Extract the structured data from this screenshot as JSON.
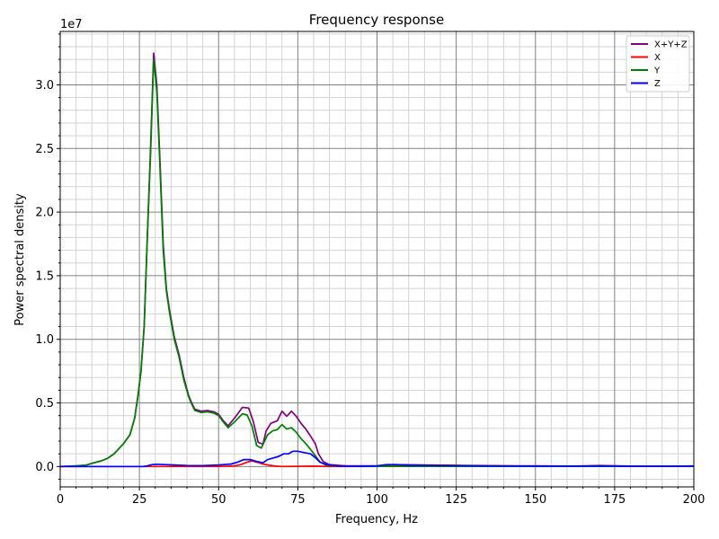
{
  "chart_data": {
    "type": "line",
    "title": "Frequency response",
    "xlabel": "Frequency, Hz",
    "ylabel": "Power spectral density",
    "y_scale_label": "1e7",
    "xlim": [
      0,
      200
    ],
    "ylim": [
      -1.6,
      34.2
    ],
    "x_ticks": [
      0,
      25,
      50,
      75,
      100,
      125,
      150,
      175,
      200
    ],
    "x_tick_labels": [
      "0",
      "25",
      "50",
      "75",
      "100",
      "125",
      "150",
      "175",
      "200"
    ],
    "y_ticks": [
      0,
      5,
      10,
      15,
      20,
      25,
      30
    ],
    "y_tick_labels": [
      "0.0",
      "0.5",
      "1.0",
      "1.5",
      "2.0",
      "2.5",
      "3.0"
    ],
    "grid": true,
    "legend_position": "top-right",
    "series": [
      {
        "name": "X+Y+Z",
        "color": "#800080",
        "points": [
          [
            0,
            0
          ],
          [
            5,
            0.05
          ],
          [
            8,
            0.1
          ],
          [
            10,
            0.25
          ],
          [
            13,
            0.45
          ],
          [
            15,
            0.65
          ],
          [
            17,
            1.0
          ],
          [
            20,
            1.8
          ],
          [
            22,
            2.5
          ],
          [
            23.5,
            3.8
          ],
          [
            24.5,
            5.5
          ],
          [
            25.5,
            7.5
          ],
          [
            26.5,
            11
          ],
          [
            27.5,
            18
          ],
          [
            28.5,
            25
          ],
          [
            29.5,
            32.5
          ],
          [
            30.5,
            30
          ],
          [
            31.5,
            24
          ],
          [
            32.5,
            17.5
          ],
          [
            33.5,
            14
          ],
          [
            34.5,
            12.3
          ],
          [
            36,
            10.2
          ],
          [
            37.5,
            8.8
          ],
          [
            39,
            7
          ],
          [
            40.5,
            5.6
          ],
          [
            41.5,
            5
          ],
          [
            42.5,
            4.5
          ],
          [
            44.5,
            4.35
          ],
          [
            46.5,
            4.4
          ],
          [
            48.5,
            4.3
          ],
          [
            50,
            4.1
          ],
          [
            51.5,
            3.6
          ],
          [
            53,
            3.2
          ],
          [
            55,
            3.8
          ],
          [
            57.5,
            4.65
          ],
          [
            59.5,
            4.6
          ],
          [
            61,
            3.5
          ],
          [
            62.5,
            1.9
          ],
          [
            64,
            1.75
          ],
          [
            65,
            2.8
          ],
          [
            66.5,
            3.4
          ],
          [
            68.5,
            3.6
          ],
          [
            70,
            4.35
          ],
          [
            71.5,
            3.95
          ],
          [
            73,
            4.35
          ],
          [
            74.5,
            3.95
          ],
          [
            76,
            3.4
          ],
          [
            77.5,
            2.95
          ],
          [
            79,
            2.4
          ],
          [
            80.5,
            1.8
          ],
          [
            81.5,
            1.0
          ],
          [
            83,
            0.4
          ],
          [
            85,
            0.15
          ],
          [
            90,
            0.05
          ],
          [
            100,
            0.05
          ],
          [
            105,
            0.15
          ],
          [
            120,
            0.1
          ],
          [
            130,
            0.08
          ],
          [
            145,
            0.05
          ],
          [
            150,
            0.05
          ],
          [
            165,
            0.03
          ],
          [
            170,
            0.08
          ],
          [
            180,
            0.03
          ],
          [
            195,
            0.02
          ],
          [
            200,
            0.05
          ]
        ]
      },
      {
        "name": "X",
        "color": "#ff0000",
        "points": [
          [
            0,
            0
          ],
          [
            20,
            0
          ],
          [
            50,
            0
          ],
          [
            55,
            0.05
          ],
          [
            57,
            0.15
          ],
          [
            59,
            0.35
          ],
          [
            60.5,
            0.45
          ],
          [
            62,
            0.35
          ],
          [
            64,
            0.2
          ],
          [
            66,
            0.1
          ],
          [
            68,
            0.03
          ],
          [
            70,
            0
          ],
          [
            80,
            0.03
          ],
          [
            85,
            0
          ],
          [
            100,
            0.02
          ],
          [
            110,
            0.08
          ],
          [
            120,
            0.1
          ],
          [
            130,
            0.05
          ],
          [
            145,
            0.03
          ],
          [
            160,
            0.03
          ],
          [
            170,
            0.05
          ],
          [
            180,
            0.02
          ],
          [
            200,
            0.03
          ]
        ]
      },
      {
        "name": "Y",
        "color": "#008000",
        "points": [
          [
            0,
            0
          ],
          [
            5,
            0.05
          ],
          [
            8,
            0.1
          ],
          [
            10,
            0.25
          ],
          [
            13,
            0.45
          ],
          [
            15,
            0.65
          ],
          [
            17,
            1.0
          ],
          [
            20,
            1.8
          ],
          [
            22,
            2.5
          ],
          [
            23.5,
            3.8
          ],
          [
            24.5,
            5.5
          ],
          [
            25.5,
            7.5
          ],
          [
            26.5,
            11
          ],
          [
            27.5,
            18
          ],
          [
            28.5,
            24.5
          ],
          [
            29.5,
            32
          ],
          [
            30.5,
            29.5
          ],
          [
            31.5,
            23.5
          ],
          [
            32.5,
            17
          ],
          [
            33.5,
            13.8
          ],
          [
            34.5,
            12.1
          ],
          [
            36,
            10
          ],
          [
            37.5,
            8.6
          ],
          [
            39,
            6.8
          ],
          [
            40.5,
            5.5
          ],
          [
            41.5,
            4.9
          ],
          [
            42.5,
            4.4
          ],
          [
            44.5,
            4.25
          ],
          [
            46.5,
            4.3
          ],
          [
            48.5,
            4.2
          ],
          [
            50,
            4.0
          ],
          [
            51.5,
            3.5
          ],
          [
            53,
            3.05
          ],
          [
            55,
            3.5
          ],
          [
            57.5,
            4.15
          ],
          [
            59,
            4.05
          ],
          [
            60.5,
            3.2
          ],
          [
            62,
            1.65
          ],
          [
            63.5,
            1.45
          ],
          [
            64.5,
            2.0
          ],
          [
            65.5,
            2.5
          ],
          [
            67,
            2.8
          ],
          [
            68.5,
            2.9
          ],
          [
            70,
            3.3
          ],
          [
            71.5,
            2.95
          ],
          [
            73,
            3.05
          ],
          [
            74.5,
            2.7
          ],
          [
            76,
            2.2
          ],
          [
            77.5,
            1.8
          ],
          [
            79,
            1.35
          ],
          [
            80.5,
            0.85
          ],
          [
            82,
            0.35
          ],
          [
            84,
            0.1
          ],
          [
            90,
            0.03
          ],
          [
            100,
            0.02
          ],
          [
            110,
            0.02
          ],
          [
            150,
            0.02
          ],
          [
            200,
            0.02
          ]
        ]
      },
      {
        "name": "Z",
        "color": "#0000ff",
        "points": [
          [
            0,
            0
          ],
          [
            20,
            0
          ],
          [
            26,
            0
          ],
          [
            27.5,
            0.05
          ],
          [
            29,
            0.15
          ],
          [
            30.5,
            0.18
          ],
          [
            33,
            0.15
          ],
          [
            36,
            0.12
          ],
          [
            40,
            0.08
          ],
          [
            45,
            0.07
          ],
          [
            50,
            0.12
          ],
          [
            54,
            0.2
          ],
          [
            56,
            0.35
          ],
          [
            58,
            0.55
          ],
          [
            60,
            0.55
          ],
          [
            62,
            0.4
          ],
          [
            64,
            0.3
          ],
          [
            65.5,
            0.55
          ],
          [
            67,
            0.65
          ],
          [
            69,
            0.8
          ],
          [
            70.5,
            1.0
          ],
          [
            72,
            1.0
          ],
          [
            73.5,
            1.2
          ],
          [
            75,
            1.2
          ],
          [
            77,
            1.1
          ],
          [
            79,
            1.0
          ],
          [
            80.5,
            0.7
          ],
          [
            82,
            0.35
          ],
          [
            84,
            0.15
          ],
          [
            88,
            0.05
          ],
          [
            95,
            0.02
          ],
          [
            100,
            0.05
          ],
          [
            103,
            0.15
          ],
          [
            106,
            0.15
          ],
          [
            110,
            0.1
          ],
          [
            120,
            0.08
          ],
          [
            130,
            0.06
          ],
          [
            140,
            0.04
          ],
          [
            150,
            0.03
          ],
          [
            160,
            0.03
          ],
          [
            170,
            0.05
          ],
          [
            180,
            0.02
          ],
          [
            190,
            0.02
          ],
          [
            200,
            0.03
          ]
        ]
      }
    ]
  }
}
